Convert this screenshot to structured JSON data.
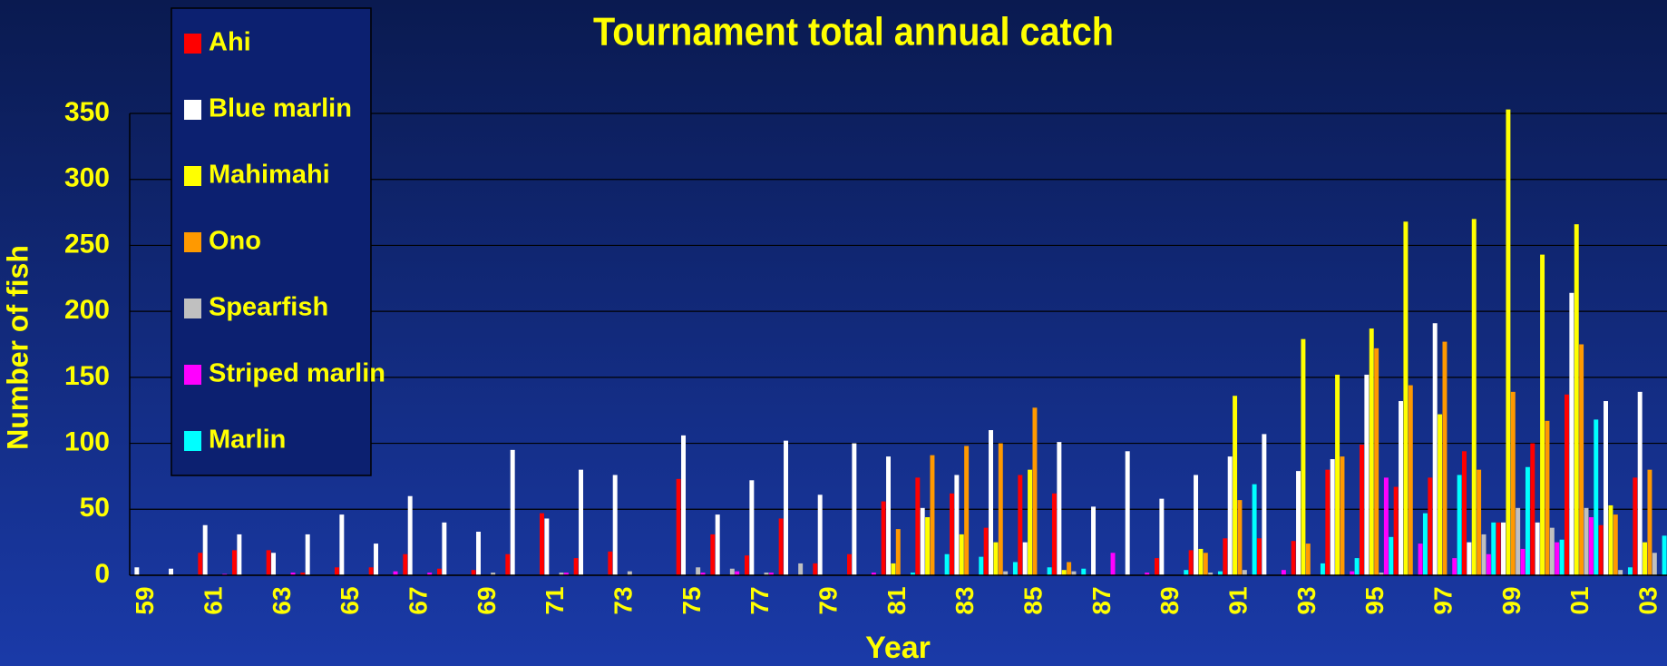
{
  "chart_data": {
    "type": "bar",
    "title": "Tournament total annual catch",
    "x_label": "Year",
    "y_label": "Number of fish",
    "categories": [
      "59",
      null,
      "61",
      null,
      "63",
      null,
      "65",
      null,
      "67",
      null,
      "69",
      null,
      "71",
      null,
      "73",
      null,
      "75",
      null,
      "77",
      null,
      "79",
      null,
      "81",
      null,
      "83",
      null,
      "85",
      null,
      "87",
      null,
      "89",
      null,
      "91",
      null,
      "93",
      null,
      "95",
      null,
      "97",
      null,
      "99",
      null,
      "01",
      null,
      "03"
    ],
    "series": [
      {
        "name": "Ahi",
        "color": "#ff0000",
        "values": [
          0,
          0,
          17,
          19,
          19,
          2,
          6,
          6,
          16,
          5,
          4,
          16,
          47,
          13,
          18,
          0,
          73,
          31,
          15,
          43,
          9,
          16,
          56,
          74,
          62,
          36,
          76,
          62,
          0,
          0,
          13,
          19,
          28,
          28,
          26,
          80,
          99,
          67,
          74,
          94,
          40,
          100,
          137,
          38,
          74
        ]
      },
      {
        "name": "Blue marlin",
        "color": "#ffffff",
        "values": [
          6,
          5,
          38,
          31,
          17,
          31,
          46,
          24,
          60,
          40,
          33,
          95,
          43,
          80,
          76,
          0,
          106,
          46,
          72,
          102,
          61,
          100,
          90,
          51,
          76,
          110,
          25,
          101,
          52,
          94,
          58,
          76,
          90,
          107,
          79,
          88,
          152,
          132,
          191,
          25,
          40,
          40,
          214,
          132,
          139
        ]
      },
      {
        "name": "Mahimahi",
        "color": "#ffff00",
        "values": [
          0,
          0,
          0,
          0,
          0,
          0,
          0,
          0,
          0,
          0,
          0,
          0,
          0,
          0,
          0,
          0,
          0,
          0,
          0,
          0,
          0,
          0,
          9,
          44,
          31,
          25,
          80,
          4,
          0,
          0,
          0,
          20,
          136,
          0,
          179,
          152,
          187,
          268,
          122,
          270,
          353,
          243,
          266,
          53,
          25
        ]
      },
      {
        "name": "Ono",
        "color": "#ff9900",
        "values": [
          0,
          0,
          0,
          0,
          0,
          0,
          0,
          0,
          0,
          0,
          0,
          0,
          0,
          0,
          0,
          0,
          0,
          0,
          0,
          0,
          0,
          0,
          35,
          91,
          98,
          100,
          127,
          10,
          0,
          0,
          0,
          17,
          57,
          0,
          24,
          90,
          172,
          144,
          177,
          80,
          139,
          117,
          175,
          46,
          80
        ]
      },
      {
        "name": "Spearfish",
        "color": "#c0c0c0",
        "values": [
          0,
          0,
          0,
          0,
          0,
          0,
          0,
          0,
          0,
          0,
          2,
          0,
          2,
          0,
          3,
          0,
          6,
          5,
          2,
          9,
          0,
          0,
          0,
          0,
          0,
          3,
          0,
          3,
          0,
          0,
          0,
          2,
          4,
          0,
          0,
          0,
          2,
          0,
          0,
          31,
          51,
          36,
          51,
          4,
          17
        ]
      },
      {
        "name": "Striped marlin",
        "color": "#ff00ff",
        "values": [
          0,
          0,
          1,
          0,
          2,
          0,
          0,
          3,
          2,
          0,
          0,
          0,
          2,
          0,
          0,
          0,
          2,
          3,
          2,
          0,
          0,
          2,
          0,
          0,
          0,
          0,
          0,
          0,
          17,
          2,
          0,
          0,
          0,
          4,
          0,
          3,
          74,
          24,
          13,
          16,
          20,
          25,
          44,
          0,
          0
        ]
      },
      {
        "name": "Marlin",
        "color": "#00ffff",
        "values": [
          0,
          0,
          0,
          0,
          0,
          0,
          0,
          0,
          0,
          0,
          0,
          0,
          0,
          0,
          0,
          0,
          0,
          0,
          0,
          0,
          0,
          0,
          2,
          16,
          14,
          10,
          6,
          5,
          0,
          0,
          4,
          3,
          69,
          0,
          9,
          13,
          29,
          47,
          76,
          40,
          82,
          27,
          118,
          6,
          30
        ]
      }
    ],
    "ylim": [
      0,
      350
    ],
    "yticks": [
      0,
      50,
      100,
      150,
      200,
      250,
      300,
      350
    ],
    "grid": true
  }
}
